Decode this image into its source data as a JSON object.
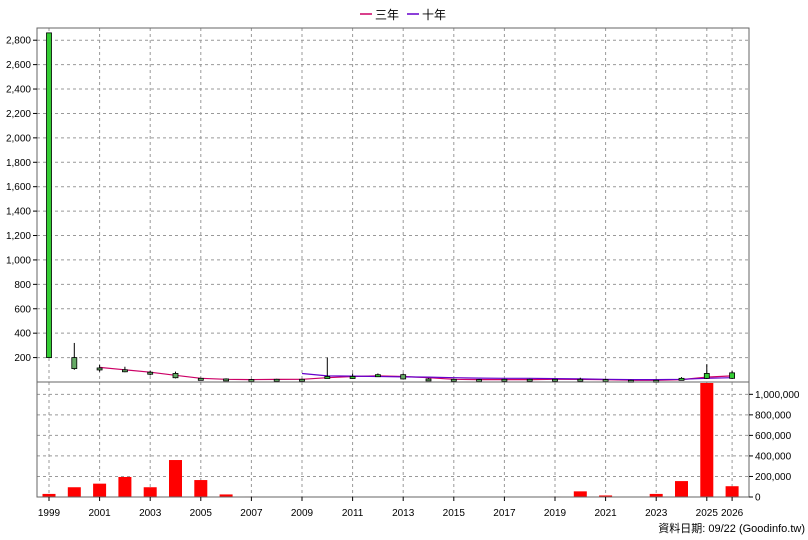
{
  "legend": {
    "items": [
      {
        "label": "三年",
        "color": "#cc0066"
      },
      {
        "label": "十年",
        "color": "#6600cc"
      }
    ]
  },
  "footer_text": "資料日期: 09/22  (Goodinfo.tw)",
  "colors": {
    "bull_candle": "#33cc33",
    "bear_candle": "#66aa66",
    "volume_bar": "#ff0000",
    "grid": "#999999",
    "frame": "#666666"
  },
  "chart_data": {
    "type": "candlestick+volume",
    "years": [
      "1999",
      "2000",
      "2001",
      "2002",
      "2003",
      "2004",
      "2005",
      "2006",
      "2007",
      "2008",
      "2009",
      "2010",
      "2011",
      "2012",
      "2013",
      "2014",
      "2015",
      "2016",
      "2017",
      "2018",
      "2019",
      "2020",
      "2021",
      "2022",
      "2023",
      "2024",
      "2025",
      "2026"
    ],
    "x_tick_labels": [
      "1999",
      "2001",
      "2003",
      "2005",
      "2007",
      "2009",
      "2011",
      "2013",
      "2015",
      "2017",
      "2019",
      "2021",
      "2023",
      "2025",
      "2026"
    ],
    "price_axis": {
      "ylim": [
        0,
        2900
      ],
      "ticks": [
        200,
        400,
        600,
        800,
        1000,
        1200,
        1400,
        1600,
        1800,
        2000,
        2200,
        2400,
        2600,
        2800
      ],
      "tick_labels": [
        "200",
        "400",
        "600",
        "800",
        "1,000",
        "1,200",
        "1,400",
        "1,600",
        "1,800",
        "2,000",
        "2,200",
        "2,400",
        "2,600",
        "2,800"
      ]
    },
    "volume_axis": {
      "ylim": [
        0,
        1120000
      ],
      "ticks": [
        0,
        200000,
        400000,
        600000,
        800000,
        1000000
      ],
      "tick_labels": [
        "0",
        "200,000",
        "400,000",
        "600,000",
        "800,000",
        "1,000,000"
      ]
    },
    "candles": [
      {
        "year": "1999",
        "open": 200,
        "close": 2860,
        "high": 2860,
        "low": 200
      },
      {
        "year": "2000",
        "open": 200,
        "close": 110,
        "high": 320,
        "low": 100
      },
      {
        "year": "2001",
        "open": 115,
        "close": 100,
        "high": 140,
        "low": 85
      },
      {
        "year": "2002",
        "open": 100,
        "close": 90,
        "high": 125,
        "low": 80
      },
      {
        "year": "2003",
        "open": 80,
        "close": 70,
        "high": 90,
        "low": 55
      },
      {
        "year": "2004",
        "open": 70,
        "close": 35,
        "high": 85,
        "low": 30
      },
      {
        "year": "2005",
        "open": 30,
        "close": 25,
        "high": 35,
        "low": 18
      },
      {
        "year": "2006",
        "open": 25,
        "close": 20,
        "high": 30,
        "low": 12
      },
      {
        "year": "2007",
        "open": 20,
        "close": 18,
        "high": 25,
        "low": 12
      },
      {
        "year": "2008",
        "open": 22,
        "close": 20,
        "high": 26,
        "low": 15
      },
      {
        "year": "2009",
        "open": 22,
        "close": 20,
        "high": 28,
        "low": 15
      },
      {
        "year": "2010",
        "open": 35,
        "close": 45,
        "high": 200,
        "low": 30
      },
      {
        "year": "2011",
        "open": 40,
        "close": 45,
        "high": 70,
        "low": 28
      },
      {
        "year": "2012",
        "open": 55,
        "close": 60,
        "high": 70,
        "low": 45
      },
      {
        "year": "2013",
        "open": 60,
        "close": 25,
        "high": 70,
        "low": 20
      },
      {
        "year": "2014",
        "open": 25,
        "close": 22,
        "high": 32,
        "low": 18
      },
      {
        "year": "2015",
        "open": 22,
        "close": 20,
        "high": 26,
        "low": 15
      },
      {
        "year": "2016",
        "open": 20,
        "close": 18,
        "high": 25,
        "low": 14
      },
      {
        "year": "2017",
        "open": 22,
        "close": 20,
        "high": 26,
        "low": 16
      },
      {
        "year": "2018",
        "open": 22,
        "close": 20,
        "high": 26,
        "low": 16
      },
      {
        "year": "2019",
        "open": 22,
        "close": 20,
        "high": 26,
        "low": 14
      },
      {
        "year": "2020",
        "open": 22,
        "close": 20,
        "high": 35,
        "low": 15
      },
      {
        "year": "2021",
        "open": 20,
        "close": 18,
        "high": 25,
        "low": 15
      },
      {
        "year": "2022",
        "open": 14,
        "close": 12,
        "high": 18,
        "low": 8
      },
      {
        "year": "2023",
        "open": 14,
        "close": 12,
        "high": 18,
        "low": 8
      },
      {
        "year": "2024",
        "open": 25,
        "close": 30,
        "high": 40,
        "low": 20
      },
      {
        "year": "2025",
        "open": 30,
        "close": 70,
        "high": 145,
        "low": 25
      },
      {
        "year": "2026",
        "open": 30,
        "close": 75,
        "high": 90,
        "low": 25
      }
    ],
    "series": [
      {
        "name": "三年",
        "color": "#cc0066",
        "points": [
          [
            "2001",
            120
          ],
          [
            "2002",
            100
          ],
          [
            "2003",
            80
          ],
          [
            "2004",
            55
          ],
          [
            "2005",
            30
          ],
          [
            "2006",
            22
          ],
          [
            "2007",
            20
          ],
          [
            "2008",
            21
          ],
          [
            "2009",
            22
          ],
          [
            "2010",
            35
          ],
          [
            "2011",
            45
          ],
          [
            "2012",
            50
          ],
          [
            "2013",
            45
          ],
          [
            "2014",
            35
          ],
          [
            "2015",
            22
          ],
          [
            "2016",
            20
          ],
          [
            "2017",
            20
          ],
          [
            "2018",
            20
          ],
          [
            "2019",
            22
          ],
          [
            "2020",
            21
          ],
          [
            "2021",
            20
          ],
          [
            "2022",
            15
          ],
          [
            "2023",
            14
          ],
          [
            "2024",
            20
          ],
          [
            "2025",
            40
          ],
          [
            "2026",
            50
          ]
        ]
      },
      {
        "name": "十年",
        "color": "#6600cc",
        "points": [
          [
            "2009",
            70
          ],
          [
            "2010",
            50
          ],
          [
            "2011",
            48
          ],
          [
            "2012",
            45
          ],
          [
            "2013",
            42
          ],
          [
            "2014",
            40
          ],
          [
            "2015",
            35
          ],
          [
            "2016",
            32
          ],
          [
            "2017",
            30
          ],
          [
            "2018",
            30
          ],
          [
            "2019",
            28
          ],
          [
            "2020",
            25
          ],
          [
            "2021",
            22
          ],
          [
            "2022",
            20
          ],
          [
            "2023",
            20
          ],
          [
            "2024",
            22
          ],
          [
            "2025",
            30
          ],
          [
            "2026",
            35
          ]
        ]
      }
    ],
    "volumes": [
      {
        "year": "1999",
        "value": 30000
      },
      {
        "year": "2000",
        "value": 95000
      },
      {
        "year": "2001",
        "value": 130000
      },
      {
        "year": "2002",
        "value": 195000
      },
      {
        "year": "2003",
        "value": 95000
      },
      {
        "year": "2004",
        "value": 360000
      },
      {
        "year": "2005",
        "value": 165000
      },
      {
        "year": "2006",
        "value": 25000
      },
      {
        "year": "2007",
        "value": 5000
      },
      {
        "year": "2008",
        "value": 2000
      },
      {
        "year": "2009",
        "value": 2000
      },
      {
        "year": "2010",
        "value": 4000
      },
      {
        "year": "2011",
        "value": 2000
      },
      {
        "year": "2012",
        "value": 2000
      },
      {
        "year": "2013",
        "value": 2000
      },
      {
        "year": "2014",
        "value": 1000
      },
      {
        "year": "2015",
        "value": 1000
      },
      {
        "year": "2016",
        "value": 1000
      },
      {
        "year": "2017",
        "value": 1000
      },
      {
        "year": "2018",
        "value": 1000
      },
      {
        "year": "2019",
        "value": 5000
      },
      {
        "year": "2020",
        "value": 55000
      },
      {
        "year": "2021",
        "value": 15000
      },
      {
        "year": "2022",
        "value": 3000
      },
      {
        "year": "2023",
        "value": 30000
      },
      {
        "year": "2024",
        "value": 155000
      },
      {
        "year": "2025",
        "value": 1180000
      },
      {
        "year": "2026",
        "value": 105000
      }
    ]
  }
}
